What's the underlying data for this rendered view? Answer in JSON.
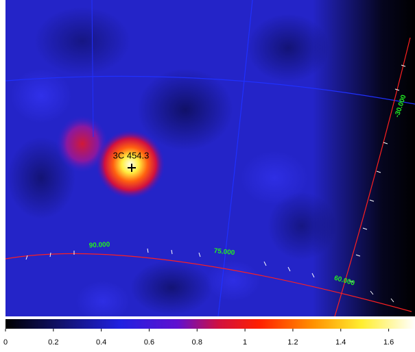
{
  "image": {
    "source_label": "3C 454.3",
    "grid_labels": [
      "90.000",
      "75.000",
      "60.000",
      "-30.000"
    ]
  },
  "colorbar": {
    "lim": [
      0,
      1.71
    ],
    "ticks": [
      0,
      0.2,
      0.4,
      0.6,
      0.8,
      1,
      1.2,
      1.4,
      1.6
    ]
  }
}
